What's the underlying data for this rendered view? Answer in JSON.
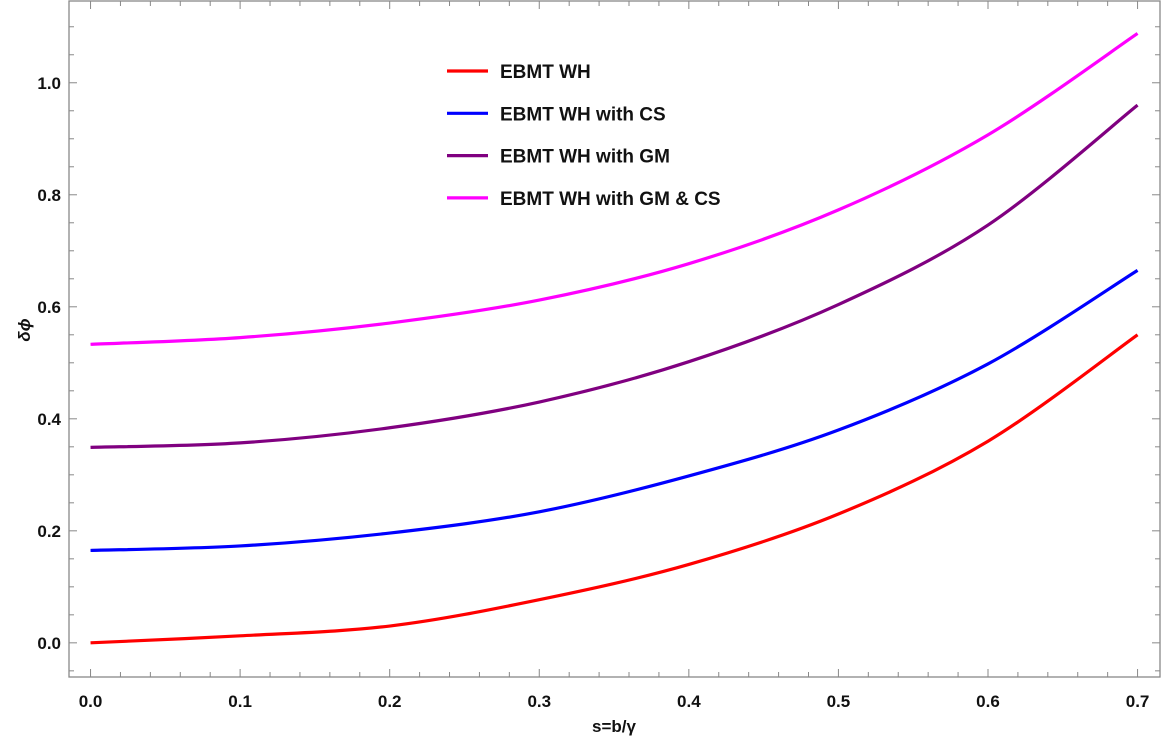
{
  "chart_data": {
    "type": "line",
    "title": "",
    "xlabel": "s=b/γ",
    "ylabel": "δϕ",
    "xlim": [
      -0.0144,
      0.715
    ],
    "ylim": [
      -0.061,
      1.146
    ],
    "x_ticks": [
      "0.0",
      "0.1",
      "0.2",
      "0.3",
      "0.4",
      "0.5",
      "0.6",
      "0.7"
    ],
    "y_ticks": [
      "0.0",
      "0.2",
      "0.4",
      "0.6",
      "0.8",
      "1.0"
    ],
    "grid": false,
    "legend_position": "top-center",
    "x": [
      0.0,
      0.1,
      0.2,
      0.3,
      0.4,
      0.5,
      0.6,
      0.7
    ],
    "series": [
      {
        "name": "EBMT WH",
        "color": "#ff0000",
        "values": [
          0.0,
          0.0125,
          0.03,
          0.077,
          0.14,
          0.23,
          0.36,
          0.55
        ]
      },
      {
        "name": "EBMT WH with CS",
        "color": "#0000ff",
        "values": [
          0.165,
          0.173,
          0.196,
          0.234,
          0.298,
          0.38,
          0.498,
          0.665
        ]
      },
      {
        "name": "EBMT WH with GM",
        "color": "#800080",
        "values": [
          0.349,
          0.357,
          0.384,
          0.43,
          0.502,
          0.604,
          0.746,
          0.96
        ]
      },
      {
        "name": "EBMT WH with GM & CS",
        "color": "#ff00ff",
        "values": [
          0.533,
          0.545,
          0.571,
          0.612,
          0.677,
          0.773,
          0.907,
          1.088
        ]
      }
    ]
  }
}
